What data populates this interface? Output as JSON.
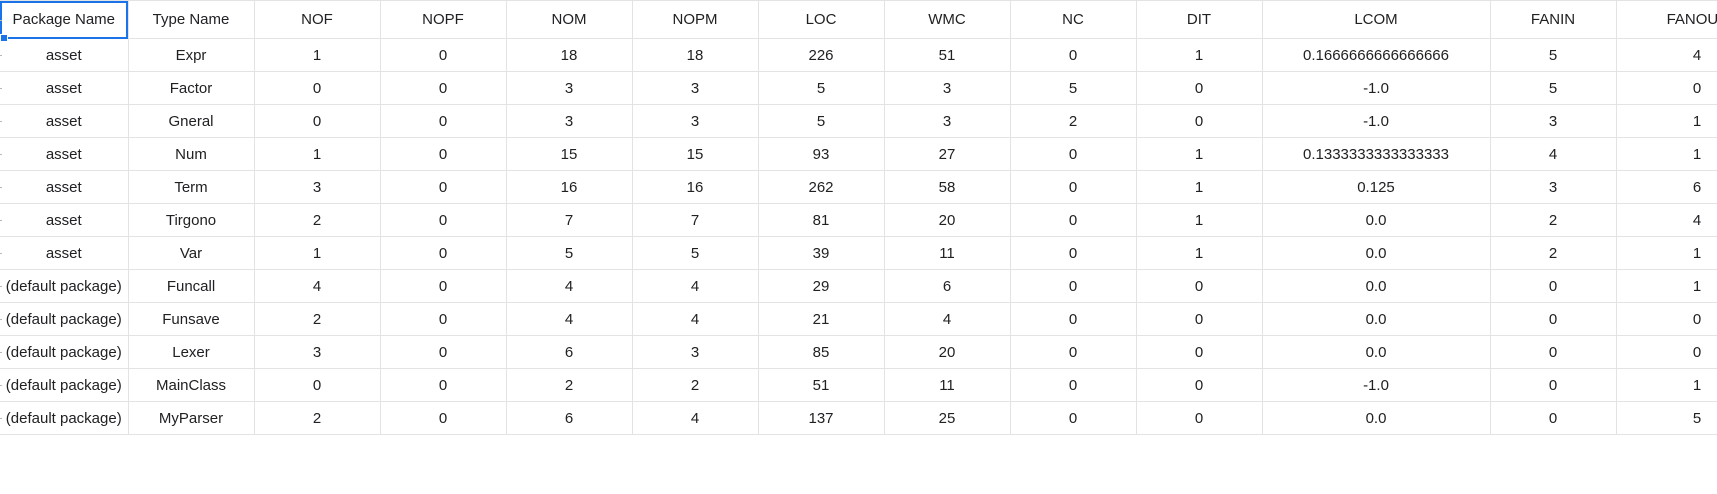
{
  "headers": [
    "Package Name",
    "Type Name",
    "NOF",
    "NOPF",
    "NOM",
    "NOPM",
    "LOC",
    "WMC",
    "NC",
    "DIT",
    "LCOM",
    "FANIN",
    "FANOUT"
  ],
  "rows": [
    [
      "asset",
      "Expr",
      "1",
      "0",
      "18",
      "18",
      "226",
      "51",
      "0",
      "1",
      "0.1666666666666666",
      "5",
      "4"
    ],
    [
      "asset",
      "Factor",
      "0",
      "0",
      "3",
      "3",
      "5",
      "3",
      "5",
      "0",
      "-1.0",
      "5",
      "0"
    ],
    [
      "asset",
      "Gneral",
      "0",
      "0",
      "3",
      "3",
      "5",
      "3",
      "2",
      "0",
      "-1.0",
      "3",
      "1"
    ],
    [
      "asset",
      "Num",
      "1",
      "0",
      "15",
      "15",
      "93",
      "27",
      "0",
      "1",
      "0.1333333333333333",
      "4",
      "1"
    ],
    [
      "asset",
      "Term",
      "3",
      "0",
      "16",
      "16",
      "262",
      "58",
      "0",
      "1",
      "0.125",
      "3",
      "6"
    ],
    [
      "asset",
      "Tirgono",
      "2",
      "0",
      "7",
      "7",
      "81",
      "20",
      "0",
      "1",
      "0.0",
      "2",
      "4"
    ],
    [
      "asset",
      "Var",
      "1",
      "0",
      "5",
      "5",
      "39",
      "11",
      "0",
      "1",
      "0.0",
      "2",
      "1"
    ],
    [
      "(default package)",
      "Funcall",
      "4",
      "0",
      "4",
      "4",
      "29",
      "6",
      "0",
      "0",
      "0.0",
      "0",
      "1"
    ],
    [
      "(default package)",
      "Funsave",
      "2",
      "0",
      "4",
      "4",
      "21",
      "4",
      "0",
      "0",
      "0.0",
      "0",
      "0"
    ],
    [
      "(default package)",
      "Lexer",
      "3",
      "0",
      "6",
      "3",
      "85",
      "20",
      "0",
      "0",
      "0.0",
      "0",
      "0"
    ],
    [
      "(default package)",
      "MainClass",
      "0",
      "0",
      "2",
      "2",
      "51",
      "11",
      "0",
      "0",
      "-1.0",
      "0",
      "1"
    ],
    [
      "(default package)",
      "MyParser",
      "2",
      "0",
      "6",
      "4",
      "137",
      "25",
      "0",
      "0",
      "0.0",
      "0",
      "5"
    ]
  ]
}
